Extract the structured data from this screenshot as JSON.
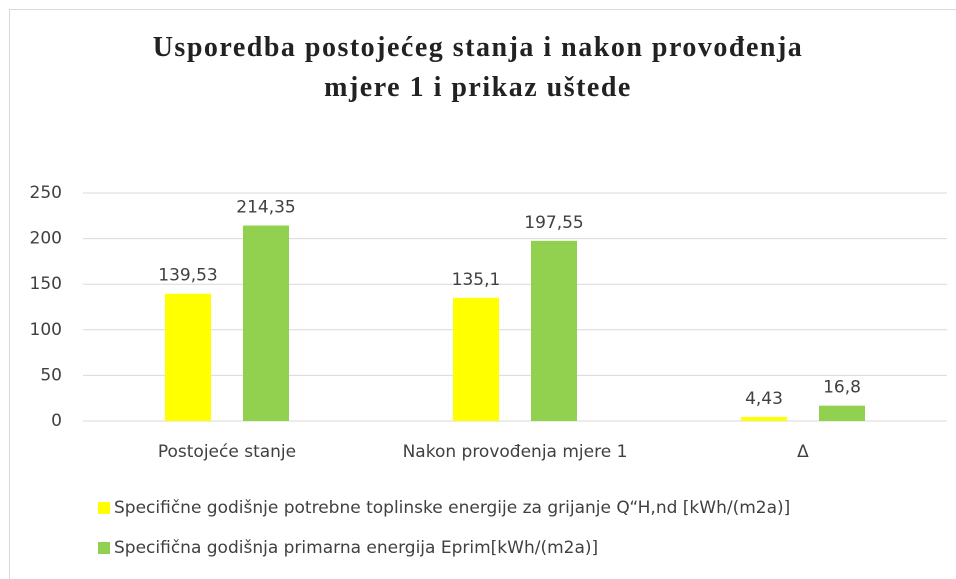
{
  "chart_data": {
    "type": "bar",
    "title": "Usporedba postojećeg stanja i nakon provođenja mjere 1 i prikaz uštede",
    "categories": [
      "Postojeće stanje",
      "Nakon provođenja mjere 1",
      "Δ"
    ],
    "series": [
      {
        "name": "Specifične godišnje potrebne toplinske energije za grijanje Q“H,nd [kWh/(m2a)]",
        "color": "#ffff00",
        "values": [
          139.53,
          135.1,
          4.43
        ],
        "value_labels": [
          "139,53",
          "135,1",
          "4,43"
        ]
      },
      {
        "name": "Specifična godišnja primarna energija Eprim[kWh/(m2a)]",
        "color": "#92d050",
        "values": [
          214.35,
          197.55,
          16.8
        ],
        "value_labels": [
          "214,35",
          "197,55",
          "16,8"
        ]
      }
    ],
    "ylim": [
      0,
      250
    ],
    "yticks": [
      0,
      50,
      100,
      150,
      200,
      250
    ],
    "grid": true,
    "legend": "bottom"
  }
}
